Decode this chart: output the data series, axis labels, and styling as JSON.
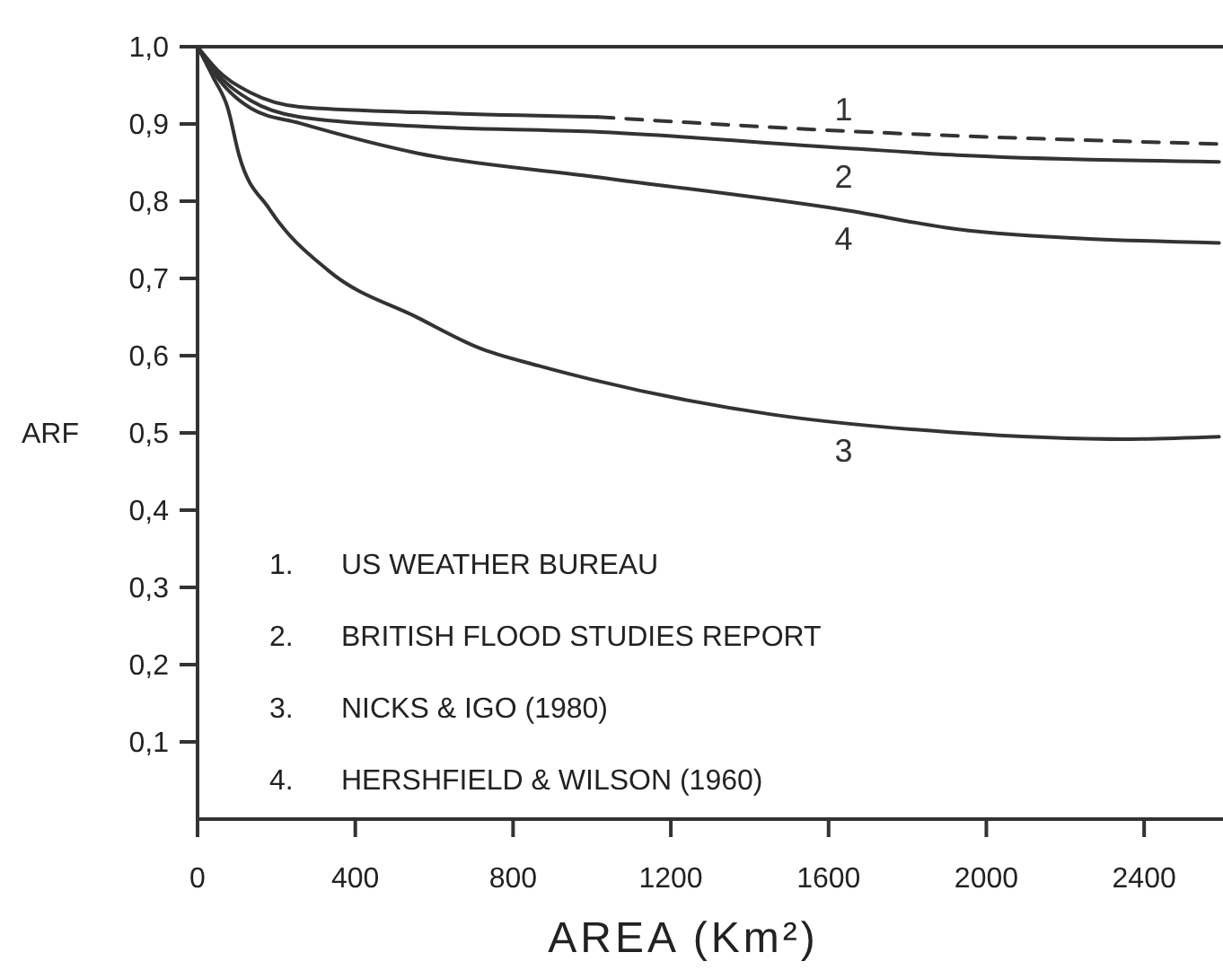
{
  "chart_data": {
    "type": "line",
    "xlabel": "AREA (Km²)",
    "ylabel": "ARF",
    "xlim": [
      0,
      2600
    ],
    "xticks": [
      0,
      400,
      800,
      1200,
      1600,
      2000,
      2400
    ],
    "ylim": [
      0,
      1
    ],
    "yticks": [
      {
        "value": 0.1,
        "label": "0,1"
      },
      {
        "value": 0.2,
        "label": "0,2"
      },
      {
        "value": 0.3,
        "label": "0,3"
      },
      {
        "value": 0.4,
        "label": "0,4"
      },
      {
        "value": 0.5,
        "label": "0,5"
      },
      {
        "value": 0.6,
        "label": "0,6"
      },
      {
        "value": 0.7,
        "label": "0,7"
      },
      {
        "value": 0.8,
        "label": "0,8"
      },
      {
        "value": 0.9,
        "label": "0,9"
      },
      {
        "value": 1.0,
        "label": "1,0"
      }
    ],
    "marker": "none",
    "grid": false,
    "series": [
      {
        "color": "#333333",
        "line_style": "solid",
        "x": [
          0,
          50,
          136,
          259,
          559,
          1014
        ],
        "values": [
          1.0,
          0.97,
          0.94,
          0.922,
          0.915,
          0.909
        ]
      },
      {
        "name": "1",
        "color": "#333333",
        "line_style": "dashed",
        "x": [
          1014,
          1636,
          2590
        ],
        "values": [
          0.909,
          0.891,
          0.874
        ]
      },
      {
        "name": "2",
        "color": "#333333",
        "line_style": "solid",
        "x": [
          0,
          50,
          136,
          259,
          559,
          1000,
          1636,
          1955,
          2590
        ],
        "values": [
          1.0,
          0.965,
          0.93,
          0.909,
          0.897,
          0.89,
          0.869,
          0.859,
          0.851
        ]
      },
      {
        "name": "3",
        "color": "#333333",
        "line_style": "solid",
        "x": [
          0,
          40,
          77,
          105,
          182,
          332,
          559,
          714,
          864,
          1000,
          1455,
          1909,
          2364,
          2590
        ],
        "values": [
          1.0,
          0.96,
          0.92,
          0.86,
          0.79,
          0.71,
          0.649,
          0.61,
          0.587,
          0.569,
          0.524,
          0.501,
          0.492,
          0.495
        ]
      },
      {
        "name": "4",
        "color": "#333333",
        "line_style": "solid",
        "x": [
          0,
          50,
          136,
          259,
          559,
          1000,
          1636,
          1955,
          2590
        ],
        "values": [
          1.0,
          0.96,
          0.92,
          0.901,
          0.862,
          0.832,
          0.789,
          0.762,
          0.746
        ]
      }
    ],
    "annotations": [
      "1.  US WEATHER BUREAU",
      "2.  BRITISH FLOOD STUDIES REPORT",
      "3.  NICKS & IGO (1980)",
      "4.  HERSHFIELD & WILSON (1960)"
    ]
  }
}
